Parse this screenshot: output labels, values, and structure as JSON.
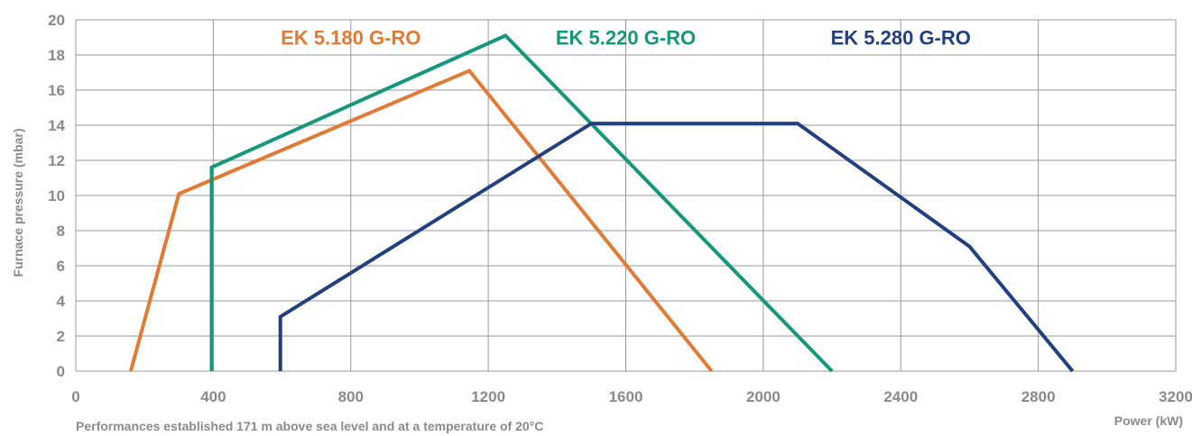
{
  "chart_data": {
    "type": "line",
    "title": "",
    "xlabel": "Power (kW)",
    "ylabel": "Furnace pressure (mbar)",
    "footnote": "Performances established 171 m above sea level and at a temperature of 20°C",
    "xlim": [
      0,
      3200
    ],
    "ylim": [
      0,
      20
    ],
    "xticks": [
      0,
      400,
      800,
      1200,
      1600,
      2000,
      2400,
      2800,
      3200
    ],
    "yticks": [
      0,
      2,
      4,
      6,
      8,
      10,
      12,
      14,
      16,
      18,
      20
    ],
    "grid": true,
    "series": [
      {
        "name": "EK 5.180 G-RO",
        "color": "#e27a35",
        "points": [
          [
            160,
            0
          ],
          [
            300,
            10.1
          ],
          [
            1145,
            17.1
          ],
          [
            1850,
            0
          ]
        ]
      },
      {
        "name": "EK 5.220 G-RO",
        "color": "#14977a",
        "points": [
          [
            395,
            0
          ],
          [
            395,
            11.6
          ],
          [
            1250,
            19.1
          ],
          [
            2200,
            0
          ]
        ]
      },
      {
        "name": "EK 5.280 G-RO",
        "color": "#223f7f",
        "points": [
          [
            595,
            0
          ],
          [
            595,
            3.1
          ],
          [
            1500,
            14.1
          ],
          [
            2100,
            14.1
          ],
          [
            2600,
            7.1
          ],
          [
            2900,
            0
          ]
        ]
      }
    ]
  }
}
